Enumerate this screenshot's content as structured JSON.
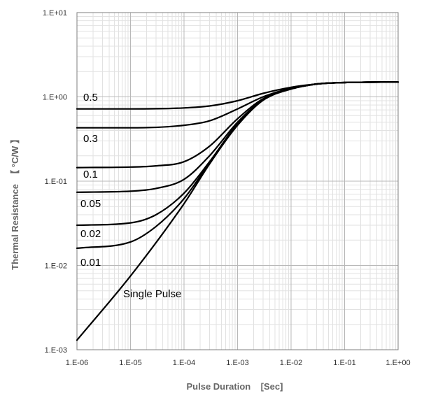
{
  "chart_data": {
    "type": "line",
    "title": "",
    "xlabel": "Pulse Duration    [Sec]",
    "ylabel": "Thermal Resistance  【 °C/W 】",
    "x_scale": "log",
    "y_scale": "log",
    "xlim": [
      1e-06,
      1
    ],
    "ylim": [
      0.001,
      10
    ],
    "x_tick_labels": [
      "1.E-06",
      "1.E-05",
      "1.E-04",
      "1.E-03",
      "1.E-02",
      "1.E-01",
      "1.E+00"
    ],
    "y_tick_labels": [
      "1.E-03",
      "1.E-02",
      "1.E-01",
      "1.E+00",
      "1.E+01"
    ],
    "grid": true,
    "legend": "none",
    "series": [
      {
        "name": "0.5",
        "x": [
          1e-06,
          1e-05,
          0.0001,
          0.0003,
          0.001,
          0.003,
          0.01,
          0.03,
          0.1,
          1
        ],
        "y": [
          0.72,
          0.72,
          0.74,
          0.78,
          0.9,
          1.1,
          1.3,
          1.42,
          1.48,
          1.5
        ]
      },
      {
        "name": "0.3",
        "x": [
          1e-06,
          1e-05,
          0.0001,
          0.0003,
          0.001,
          0.003,
          0.01,
          0.03,
          0.1,
          1
        ],
        "y": [
          0.43,
          0.43,
          0.46,
          0.52,
          0.72,
          1.0,
          1.27,
          1.42,
          1.48,
          1.5
        ]
      },
      {
        "name": "0.1",
        "x": [
          1e-06,
          1e-05,
          3e-05,
          0.0001,
          0.0003,
          0.001,
          0.003,
          0.01,
          0.03,
          0.1,
          1
        ],
        "y": [
          0.145,
          0.147,
          0.152,
          0.17,
          0.26,
          0.55,
          0.95,
          1.25,
          1.42,
          1.48,
          1.5
        ]
      },
      {
        "name": "0.05",
        "x": [
          1e-06,
          1e-05,
          3e-05,
          0.0001,
          0.0003,
          0.001,
          0.003,
          0.01,
          0.03,
          0.1,
          1
        ],
        "y": [
          0.074,
          0.076,
          0.082,
          0.105,
          0.2,
          0.5,
          0.93,
          1.25,
          1.42,
          1.48,
          1.5
        ]
      },
      {
        "name": "0.02",
        "x": [
          1e-06,
          1e-05,
          3e-05,
          0.0001,
          0.0003,
          0.001,
          0.003,
          0.01,
          0.03,
          0.1,
          1
        ],
        "y": [
          0.03,
          0.032,
          0.04,
          0.072,
          0.17,
          0.48,
          0.92,
          1.24,
          1.42,
          1.48,
          1.5
        ]
      },
      {
        "name": "0.01",
        "x": [
          1e-06,
          1e-05,
          3e-05,
          0.0001,
          0.0003,
          0.001,
          0.003,
          0.01,
          0.03,
          0.1,
          1
        ],
        "y": [
          0.016,
          0.019,
          0.029,
          0.062,
          0.165,
          0.47,
          0.92,
          1.24,
          1.42,
          1.48,
          1.5
        ]
      },
      {
        "name": "Single Pulse",
        "x": [
          1e-06,
          1e-05,
          0.0001,
          0.0003,
          0.001,
          0.003,
          0.01,
          0.03,
          0.1,
          1
        ],
        "y": [
          0.0013,
          0.0075,
          0.054,
          0.16,
          0.46,
          0.91,
          1.24,
          1.42,
          1.48,
          1.5
        ]
      }
    ]
  }
}
